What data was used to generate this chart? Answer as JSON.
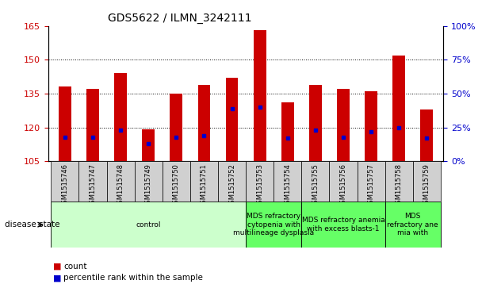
{
  "title": "GDS5622 / ILMN_3242111",
  "samples": [
    "GSM1515746",
    "GSM1515747",
    "GSM1515748",
    "GSM1515749",
    "GSM1515750",
    "GSM1515751",
    "GSM1515752",
    "GSM1515753",
    "GSM1515754",
    "GSM1515755",
    "GSM1515756",
    "GSM1515757",
    "GSM1515758",
    "GSM1515759"
  ],
  "counts": [
    138,
    137,
    144,
    119,
    135,
    139,
    142,
    163,
    131,
    139,
    137,
    136,
    152,
    128
  ],
  "percentile_ranks": [
    18,
    18,
    23,
    13,
    18,
    19,
    39,
    40,
    17,
    23,
    18,
    22,
    25,
    17
  ],
  "ylim_left": [
    105,
    165
  ],
  "ylim_right": [
    0,
    100
  ],
  "left_ticks": [
    105,
    120,
    135,
    150,
    165
  ],
  "right_ticks": [
    0,
    25,
    50,
    75,
    100
  ],
  "bar_color": "#cc0000",
  "dot_color": "#0000cc",
  "bar_bottom": 105,
  "groups": [
    {
      "label": "control",
      "start": 0,
      "end": 7,
      "color": "#ccffcc"
    },
    {
      "label": "MDS refractory\ncytopenia with\nmultilineage dysplasia",
      "start": 7,
      "end": 9,
      "color": "#66ff66"
    },
    {
      "label": "MDS refractory anemia\nwith excess blasts-1",
      "start": 9,
      "end": 12,
      "color": "#66ff66"
    },
    {
      "label": "MDS\nrefractory ane\nmia with",
      "start": 12,
      "end": 14,
      "color": "#66ff66"
    }
  ],
  "tick_box_color": "#d0d0d0",
  "disease_state_label": "disease state",
  "legend_count": "count",
  "legend_percentile": "percentile rank within the sample",
  "tick_label_color_left": "#cc0000",
  "tick_label_color_right": "#0000cc",
  "grid_lines": [
    120,
    135,
    150
  ],
  "bar_width": 0.45
}
